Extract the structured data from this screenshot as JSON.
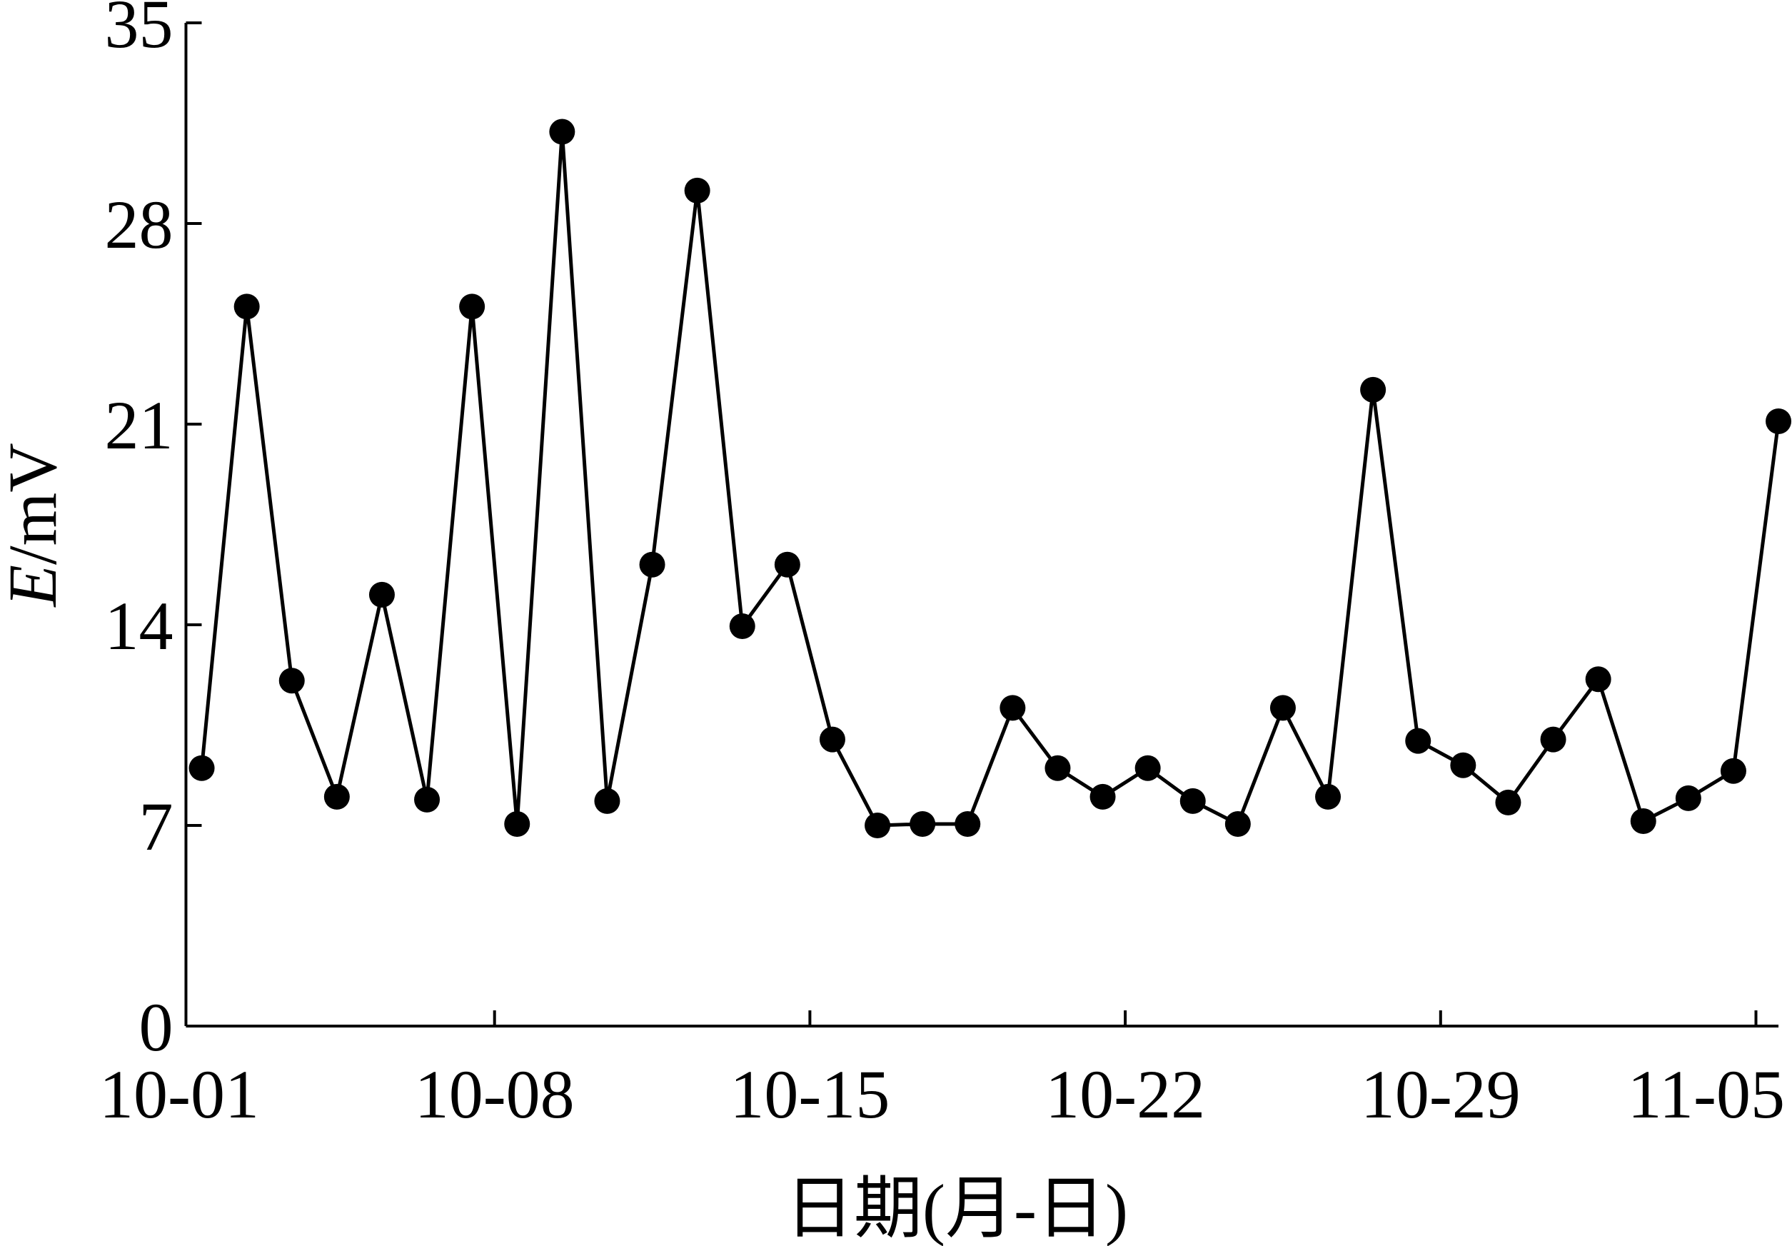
{
  "chart_data": {
    "type": "line",
    "y_label": {
      "italic": "E",
      "rest": "/mV"
    },
    "x_label": "日期(月-日)",
    "x": [
      0.5,
      1.5,
      2.5,
      3.5,
      4.5,
      5.5,
      6.5,
      7.5,
      8.5,
      9.5,
      10.5,
      11.5,
      12.5,
      13.5,
      14.5,
      15.5,
      16.5,
      17.5,
      18.5,
      19.5,
      20.5,
      21.5,
      22.5,
      23.5,
      24.5,
      25.5,
      26.5,
      27.5,
      28.5,
      29.5,
      30.5,
      31.5,
      32.5,
      33.5,
      34.5,
      35.5
    ],
    "series": [
      {
        "name": "E",
        "color": "#000000",
        "values": [
          9.0,
          25.1,
          12.05,
          8.0,
          15.05,
          7.9,
          25.1,
          7.05,
          31.2,
          7.85,
          16.1,
          29.15,
          13.95,
          16.1,
          10.0,
          7.0,
          7.05,
          7.05,
          11.1,
          9.0,
          8.0,
          9.0,
          7.85,
          7.05,
          11.1,
          8.0,
          22.2,
          9.95,
          9.1,
          7.8,
          10.0,
          12.1,
          7.15,
          7.95,
          8.9,
          21.1
        ]
      }
    ],
    "xlim": [
      0.15,
      35.5
    ],
    "xticks": [
      {
        "value": 0,
        "label": "10-01"
      },
      {
        "value": 7,
        "label": "10-08"
      },
      {
        "value": 14,
        "label": "10-15"
      },
      {
        "value": 21,
        "label": "10-22"
      },
      {
        "value": 28,
        "label": "10-29"
      },
      {
        "value": 35,
        "label": "11-05"
      }
    ],
    "ylim": [
      0,
      35
    ],
    "yticks": [
      0,
      7,
      14,
      21,
      28,
      35
    ],
    "grid": false
  }
}
